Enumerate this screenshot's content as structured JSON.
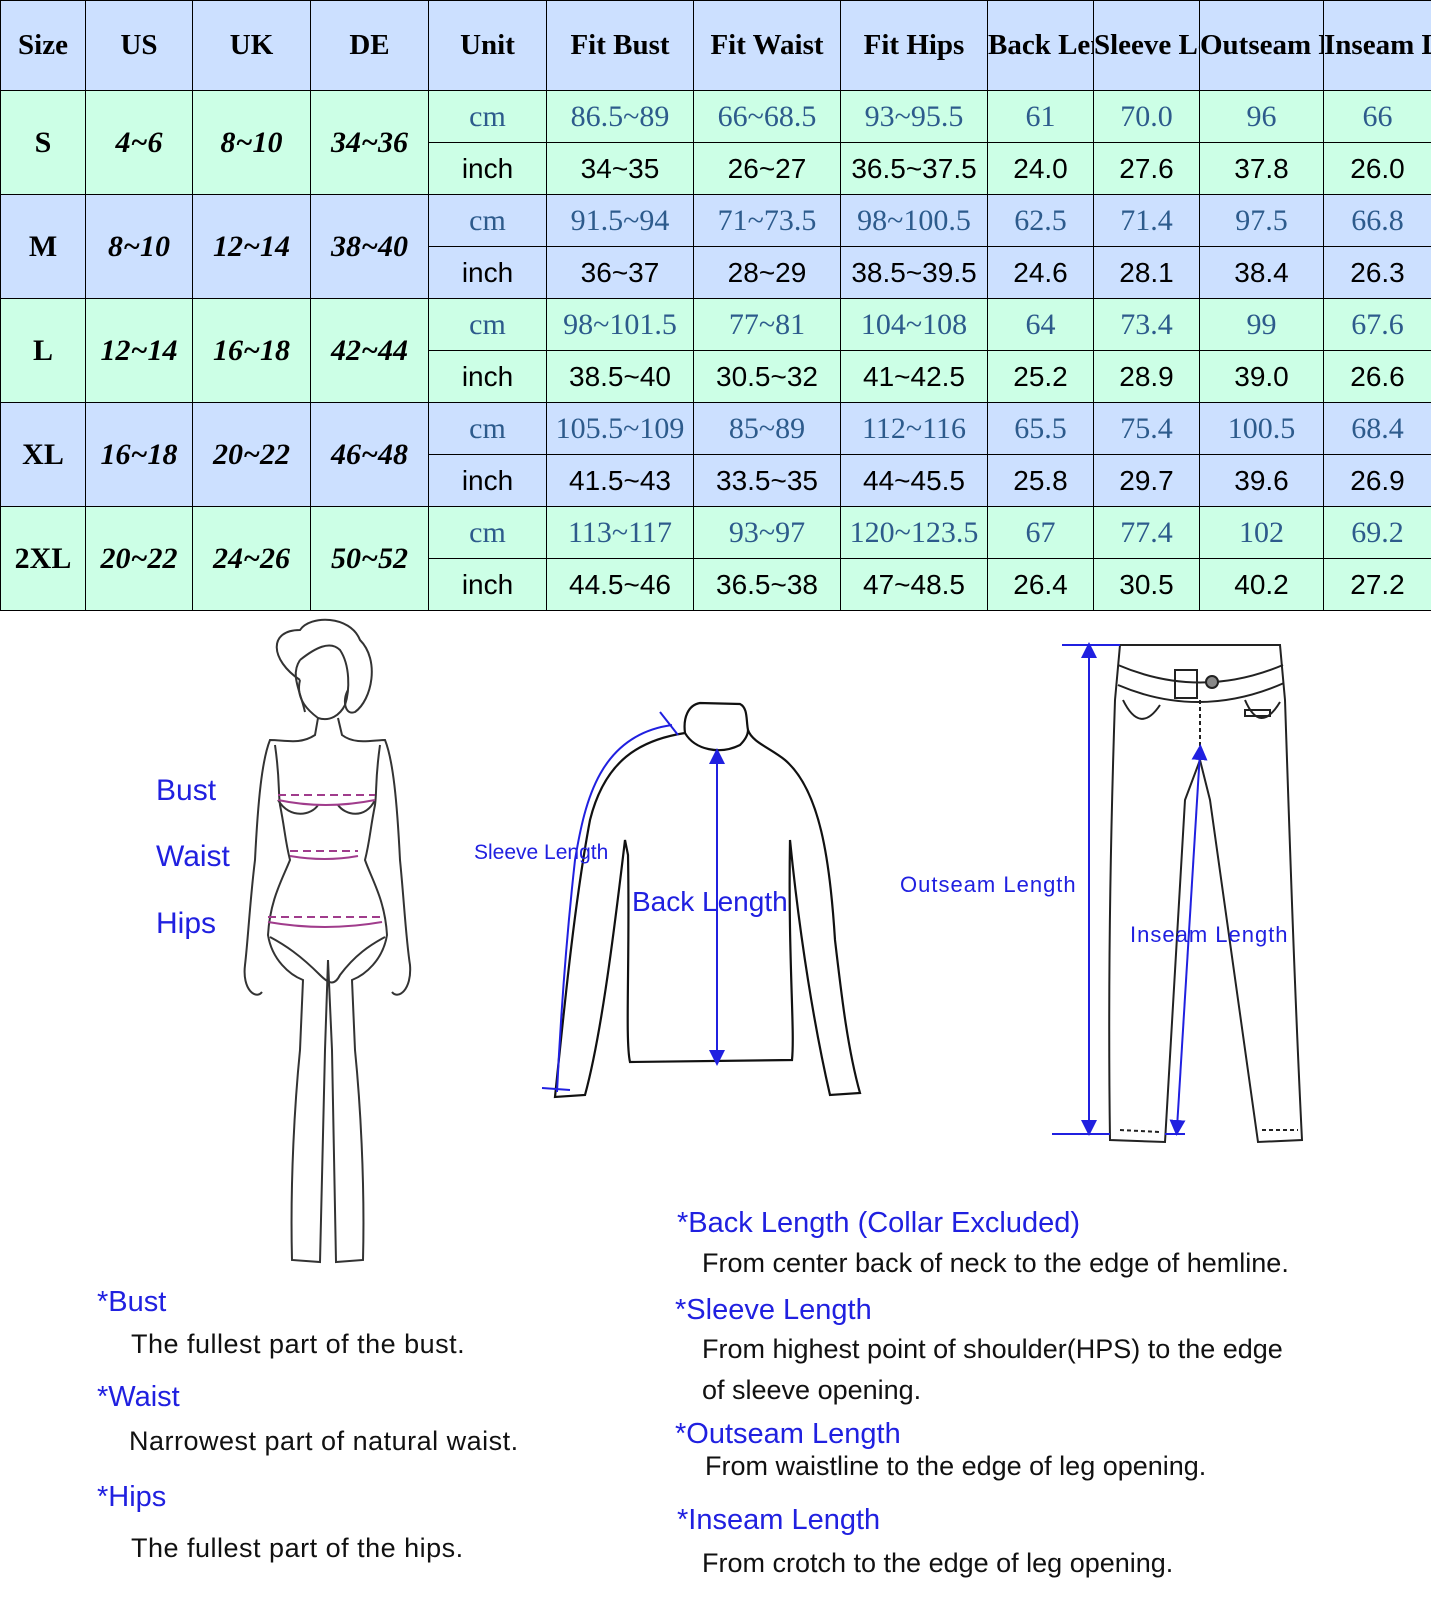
{
  "table": {
    "headers": [
      "Size",
      "US",
      "UK",
      "DE",
      "Unit",
      "Fit Bust",
      "Fit Waist",
      "Fit Hips",
      "Back Length",
      "Sleeve Length",
      "Outseam Length",
      "Inseam Length"
    ],
    "rows": [
      {
        "size": "S",
        "us": "4~6",
        "uk": "8~10",
        "de": "34~36",
        "cm": {
          "unit": "cm",
          "values": [
            "86.5~89",
            "66~68.5",
            "93~95.5",
            "61",
            "70.0",
            "96",
            "66"
          ]
        },
        "inch": {
          "unit": "inch",
          "values": [
            "34~35",
            "26~27",
            "36.5~37.5",
            "24.0",
            "27.6",
            "37.8",
            "26.0"
          ]
        }
      },
      {
        "size": "M",
        "us": "8~10",
        "uk": "12~14",
        "de": "38~40",
        "cm": {
          "unit": "cm",
          "values": [
            "91.5~94",
            "71~73.5",
            "98~100.5",
            "62.5",
            "71.4",
            "97.5",
            "66.8"
          ]
        },
        "inch": {
          "unit": "inch",
          "values": [
            "36~37",
            "28~29",
            "38.5~39.5",
            "24.6",
            "28.1",
            "38.4",
            "26.3"
          ]
        }
      },
      {
        "size": "L",
        "us": "12~14",
        "uk": "16~18",
        "de": "42~44",
        "cm": {
          "unit": "cm",
          "values": [
            "98~101.5",
            "77~81",
            "104~108",
            "64",
            "73.4",
            "99",
            "67.6"
          ]
        },
        "inch": {
          "unit": "inch",
          "values": [
            "38.5~40",
            "30.5~32",
            "41~42.5",
            "25.2",
            "28.9",
            "39.0",
            "26.6"
          ]
        }
      },
      {
        "size": "XL",
        "us": "16~18",
        "uk": "20~22",
        "de": "46~48",
        "cm": {
          "unit": "cm",
          "values": [
            "105.5~109",
            "85~89",
            "112~116",
            "65.5",
            "75.4",
            "100.5",
            "68.4"
          ]
        },
        "inch": {
          "unit": "inch",
          "values": [
            "41.5~43",
            "33.5~35",
            "44~45.5",
            "25.8",
            "29.7",
            "39.6",
            "26.9"
          ]
        }
      },
      {
        "size": "2XL",
        "us": "20~22",
        "uk": "24~26",
        "de": "50~52",
        "cm": {
          "unit": "cm",
          "values": [
            "113~117",
            "93~97",
            "120~123.5",
            "67",
            "77.4",
            "102",
            "69.2"
          ]
        },
        "inch": {
          "unit": "inch",
          "values": [
            "44.5~46",
            "36.5~38",
            "47~48.5",
            "26.4",
            "30.5",
            "40.2",
            "27.2"
          ]
        }
      }
    ]
  },
  "colors": {
    "header": "#cce0ff",
    "row_green": "#ccffe6",
    "row_blue": "#cce0ff",
    "cm_text": "#2d5b8c",
    "label_blue": "#2020e0",
    "measure_line": "#a03c8c"
  },
  "figure_labels": {
    "bust": "Bust",
    "waist": "Waist",
    "hips": "Hips",
    "sleeve_length": "Sleeve Length",
    "back_length": "Back Length",
    "outseam_length": "Outseam Length",
    "inseam_length": "Inseam Length"
  },
  "definitions": [
    {
      "term": "*Bust",
      "desc": [
        "The fullest part of the bust."
      ]
    },
    {
      "term": "*Waist",
      "desc": [
        "Narrowest part of natural waist."
      ]
    },
    {
      "term": "*Hips",
      "desc": [
        "The fullest part of the hips."
      ]
    },
    {
      "term": "*Back Length (Collar Excluded)",
      "desc": [
        "From center back of neck to the edge of hemline."
      ]
    },
    {
      "term": "*Sleeve Length",
      "desc": [
        "From highest point of shoulder(HPS) to the edge",
        "of sleeve opening."
      ]
    },
    {
      "term": "*Outseam Length",
      "desc": [
        "From waistline to the edge of leg opening."
      ]
    },
    {
      "term": "*Inseam Length",
      "desc": [
        "From crotch to the edge of leg opening."
      ]
    }
  ]
}
